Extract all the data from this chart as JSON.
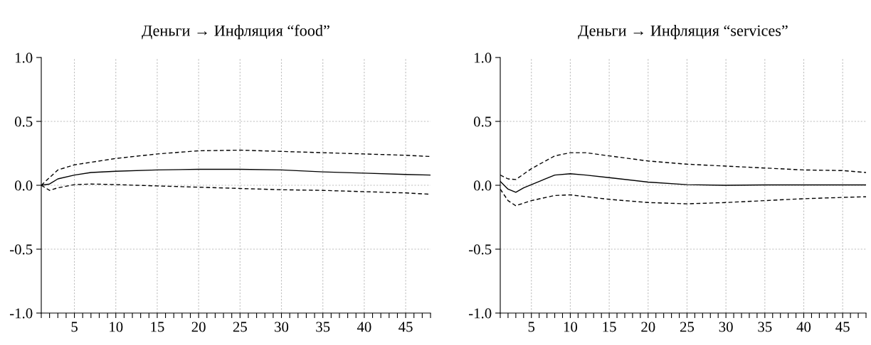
{
  "chart_data": [
    {
      "type": "line",
      "title": "Деньги → Инфляция “food”",
      "xlim": [
        1,
        48
      ],
      "ylim": [
        -1.0,
        1.0
      ],
      "yticks": [
        {
          "value": -1.0,
          "label": "-1.0"
        },
        {
          "value": -0.5,
          "label": "-0.5"
        },
        {
          "value": 0.0,
          "label": "0.0"
        },
        {
          "value": 0.5,
          "label": "0.5"
        },
        {
          "value": 1.0,
          "label": "1.0"
        }
      ],
      "xticks": [
        {
          "value": 1,
          "label": null
        },
        {
          "value": 2,
          "label": null
        },
        {
          "value": 3,
          "label": null
        },
        {
          "value": 4,
          "label": null
        },
        5,
        {
          "value": 6,
          "label": null
        },
        {
          "value": 7,
          "label": null
        },
        {
          "value": 8,
          "label": null
        },
        {
          "value": 9,
          "label": null
        },
        10,
        {
          "value": 11,
          "label": null
        },
        {
          "value": 12,
          "label": null
        },
        {
          "value": 13,
          "label": null
        },
        {
          "value": 14,
          "label": null
        },
        15,
        {
          "value": 16,
          "label": null
        },
        {
          "value": 17,
          "label": null
        },
        {
          "value": 18,
          "label": null
        },
        {
          "value": 19,
          "label": null
        },
        20,
        {
          "value": 21,
          "label": null
        },
        {
          "value": 22,
          "label": null
        },
        {
          "value": 23,
          "label": null
        },
        {
          "value": 24,
          "label": null
        },
        25,
        {
          "value": 26,
          "label": null
        },
        {
          "value": 27,
          "label": null
        },
        {
          "value": 28,
          "label": null
        },
        {
          "value": 29,
          "label": null
        },
        30,
        {
          "value": 31,
          "label": null
        },
        {
          "value": 32,
          "label": null
        },
        {
          "value": 33,
          "label": null
        },
        {
          "value": 34,
          "label": null
        },
        35,
        {
          "value": 36,
          "label": null
        },
        {
          "value": 37,
          "label": null
        },
        {
          "value": 38,
          "label": null
        },
        {
          "value": 39,
          "label": null
        },
        40,
        {
          "value": 41,
          "label": null
        },
        {
          "value": 42,
          "label": null
        },
        {
          "value": 43,
          "label": null
        },
        {
          "value": 44,
          "label": null
        },
        45,
        {
          "value": 46,
          "label": null
        },
        {
          "value": 47,
          "label": null
        },
        {
          "value": 48,
          "label": null
        }
      ],
      "grid": true,
      "legend": false,
      "series": [
        {
          "color": "#000000",
          "line_style": "solid",
          "x": [
            1,
            2,
            3,
            5,
            7,
            10,
            15,
            20,
            25,
            30,
            35,
            40,
            45,
            48
          ],
          "values": [
            0.0,
            0.01,
            0.05,
            0.08,
            0.1,
            0.11,
            0.12,
            0.125,
            0.125,
            0.12,
            0.105,
            0.095,
            0.085,
            0.08
          ]
        },
        {
          "color": "#000000",
          "line_style": "dashed",
          "x": [
            1,
            3,
            5,
            10,
            15,
            20,
            25,
            30,
            35,
            40,
            45,
            48
          ],
          "values": [
            0.0,
            0.12,
            0.16,
            0.21,
            0.245,
            0.27,
            0.275,
            0.265,
            0.255,
            0.245,
            0.235,
            0.225
          ]
        },
        {
          "color": "#000000",
          "line_style": "dashed",
          "x": [
            1,
            2,
            3,
            5,
            7,
            10,
            15,
            20,
            25,
            30,
            35,
            40,
            45,
            48
          ],
          "values": [
            0.0,
            -0.04,
            -0.02,
            0.005,
            0.01,
            0.005,
            -0.005,
            -0.015,
            -0.025,
            -0.035,
            -0.04,
            -0.05,
            -0.06,
            -0.07
          ]
        }
      ]
    },
    {
      "type": "line",
      "title": "Деньги → Инфляция “services”",
      "xlim": [
        1,
        48
      ],
      "ylim": [
        -1.0,
        1.0
      ],
      "yticks": [
        {
          "value": -1.0,
          "label": "-1.0"
        },
        {
          "value": -0.5,
          "label": "-0.5"
        },
        {
          "value": 0.0,
          "label": "0.0"
        },
        {
          "value": 0.5,
          "label": "0.5"
        },
        {
          "value": 1.0,
          "label": "1.0"
        }
      ],
      "xticks": [
        {
          "value": 1,
          "label": null
        },
        {
          "value": 2,
          "label": null
        },
        {
          "value": 3,
          "label": null
        },
        {
          "value": 4,
          "label": null
        },
        5,
        {
          "value": 6,
          "label": null
        },
        {
          "value": 7,
          "label": null
        },
        {
          "value": 8,
          "label": null
        },
        {
          "value": 9,
          "label": null
        },
        10,
        {
          "value": 11,
          "label": null
        },
        {
          "value": 12,
          "label": null
        },
        {
          "value": 13,
          "label": null
        },
        {
          "value": 14,
          "label": null
        },
        15,
        {
          "value": 16,
          "label": null
        },
        {
          "value": 17,
          "label": null
        },
        {
          "value": 18,
          "label": null
        },
        {
          "value": 19,
          "label": null
        },
        20,
        {
          "value": 21,
          "label": null
        },
        {
          "value": 22,
          "label": null
        },
        {
          "value": 23,
          "label": null
        },
        {
          "value": 24,
          "label": null
        },
        25,
        {
          "value": 26,
          "label": null
        },
        {
          "value": 27,
          "label": null
        },
        {
          "value": 28,
          "label": null
        },
        {
          "value": 29,
          "label": null
        },
        30,
        {
          "value": 31,
          "label": null
        },
        {
          "value": 32,
          "label": null
        },
        {
          "value": 33,
          "label": null
        },
        {
          "value": 34,
          "label": null
        },
        35,
        {
          "value": 36,
          "label": null
        },
        {
          "value": 37,
          "label": null
        },
        {
          "value": 38,
          "label": null
        },
        {
          "value": 39,
          "label": null
        },
        40,
        {
          "value": 41,
          "label": null
        },
        {
          "value": 42,
          "label": null
        },
        {
          "value": 43,
          "label": null
        },
        {
          "value": 44,
          "label": null
        },
        45,
        {
          "value": 46,
          "label": null
        },
        {
          "value": 47,
          "label": null
        },
        {
          "value": 48,
          "label": null
        }
      ],
      "grid": true,
      "legend": false,
      "series": [
        {
          "color": "#000000",
          "line_style": "solid",
          "x": [
            1,
            2,
            3,
            4,
            6,
            8,
            10,
            12,
            15,
            20,
            25,
            30,
            35,
            48
          ],
          "values": [
            0.03,
            -0.03,
            -0.055,
            -0.02,
            0.03,
            0.08,
            0.09,
            0.08,
            0.06,
            0.025,
            0.005,
            0.0,
            0.003,
            0.003
          ]
        },
        {
          "color": "#000000",
          "line_style": "dashed",
          "x": [
            1,
            2,
            3,
            5,
            8,
            10,
            12,
            15,
            20,
            25,
            30,
            35,
            40,
            45,
            48
          ],
          "values": [
            0.08,
            0.05,
            0.045,
            0.13,
            0.23,
            0.255,
            0.255,
            0.23,
            0.19,
            0.165,
            0.15,
            0.135,
            0.12,
            0.115,
            0.1
          ]
        },
        {
          "color": "#000000",
          "line_style": "dashed",
          "x": [
            1,
            2,
            3,
            5,
            8,
            10,
            15,
            20,
            25,
            30,
            35,
            40,
            45,
            48
          ],
          "values": [
            -0.03,
            -0.12,
            -0.16,
            -0.12,
            -0.08,
            -0.075,
            -0.11,
            -0.135,
            -0.145,
            -0.135,
            -0.12,
            -0.105,
            -0.095,
            -0.09
          ]
        }
      ]
    }
  ]
}
